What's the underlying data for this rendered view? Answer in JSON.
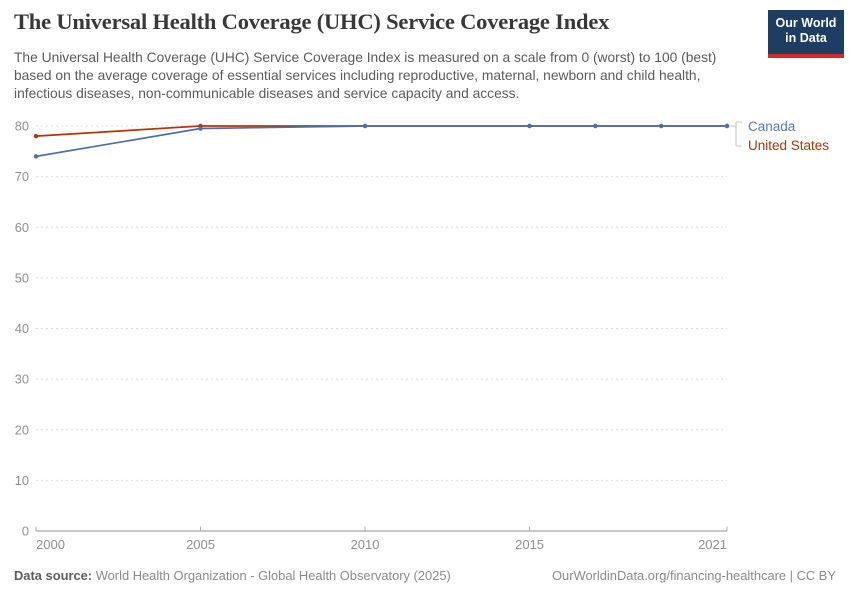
{
  "header": {
    "title": "The Universal Health Coverage (UHC) Service Coverage Index",
    "subtitle": "The Universal Health Coverage (UHC) Service Coverage Index is measured on a scale from 0 (worst) to 100 (best) based on the average coverage of essential services including reproductive, maternal, newborn and child health, infectious diseases, non-communicable diseases and service capacity and access.",
    "logo": {
      "line1": "Our World",
      "line2": "in Data",
      "bg_color": "#1d3d63",
      "accent_color": "#d7282f",
      "text_color": "#ffffff"
    }
  },
  "chart_data": {
    "type": "line",
    "title": "The Universal Health Coverage (UHC) Service Coverage Index",
    "x": [
      2000,
      2005,
      2010,
      2015,
      2017,
      2019,
      2021
    ],
    "series": [
      {
        "name": "United States",
        "color": "#b13507",
        "values": [
          78,
          80,
          80,
          80,
          80,
          80,
          80
        ]
      },
      {
        "name": "Canada",
        "color": "#4d6fa5",
        "values": [
          74,
          79.5,
          80,
          80,
          80,
          80,
          80
        ]
      }
    ],
    "xlim": [
      2000,
      2021
    ],
    "ylim": [
      0,
      80
    ],
    "yticks": [
      0,
      10,
      20,
      30,
      40,
      50,
      60,
      70,
      80
    ],
    "xticks": [
      2000,
      2005,
      2010,
      2015,
      2021
    ],
    "grid": "horizontal-dashed",
    "legend_position": "right-of-line-ends",
    "axis_color": "#8f8f8f",
    "grid_color": "#dedede",
    "tick_label_color": "#8f8f8f"
  },
  "legend": {
    "items": [
      {
        "label": "Canada",
        "color": "#577ca9"
      },
      {
        "label": "United States",
        "color": "#b13507"
      }
    ]
  },
  "footer": {
    "datasource_label": "Data source:",
    "datasource_value": "World Health Organization - Global Health Observatory (2025)",
    "attribution": "OurWorldinData.org/financing-healthcare | CC BY"
  }
}
